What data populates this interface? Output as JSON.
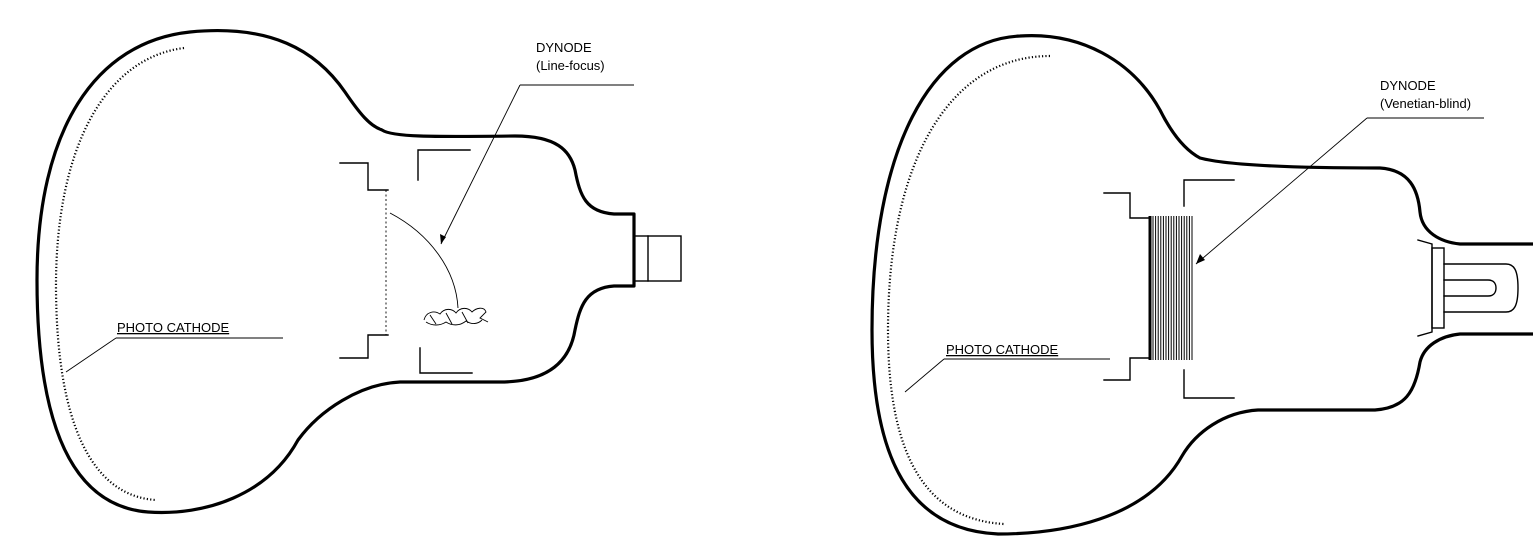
{
  "tube_line_focus": {
    "dynode_label": "DYNODE",
    "dynode_type": "(Line-focus)",
    "cathode_label": "PHOTO CATHODE"
  },
  "tube_venetian_blind": {
    "dynode_label": "DYNODE",
    "dynode_type": "(Venetian-blind)",
    "cathode_label": "PHOTO CATHODE"
  },
  "colors": {
    "ink": "#000000",
    "background": "#ffffff"
  }
}
